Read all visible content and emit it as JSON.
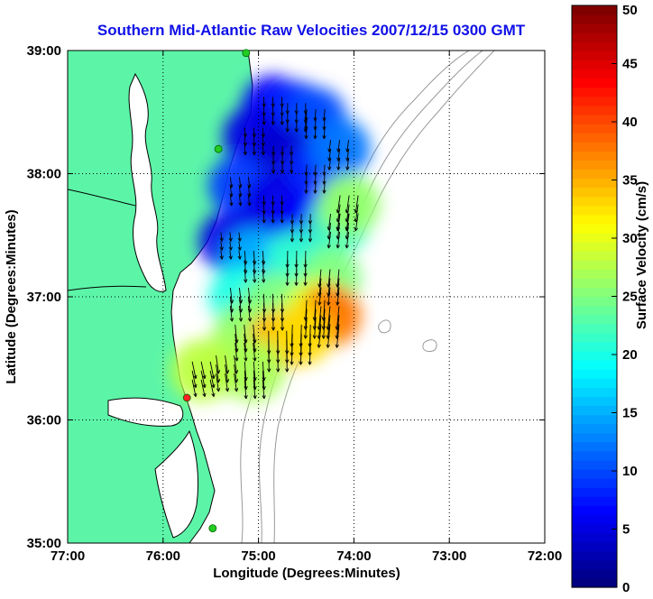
{
  "chart_data": {
    "type": "heatmap",
    "title": "Southern Mid-Atlantic Raw Velocities 2007/12/15 0300 GMT",
    "xlabel": "Longitude (Degrees:Minutes)",
    "ylabel": "Latitude (Degrees:Minutes)",
    "x_ticks": [
      {
        "value": -77,
        "label": "77:00"
      },
      {
        "value": -76,
        "label": "76:00"
      },
      {
        "value": -75,
        "label": "75:00"
      },
      {
        "value": -74,
        "label": "74:00"
      },
      {
        "value": -73,
        "label": "73:00"
      },
      {
        "value": -72,
        "label": "72:00"
      }
    ],
    "y_ticks": [
      {
        "value": 35,
        "label": "35:00"
      },
      {
        "value": 36,
        "label": "36:00"
      },
      {
        "value": 37,
        "label": "37:00"
      },
      {
        "value": 38,
        "label": "38:00"
      },
      {
        "value": 39,
        "label": "39:00"
      }
    ],
    "xlim": [
      -77,
      -72
    ],
    "ylim": [
      35,
      39
    ],
    "grid": true,
    "colorbar": {
      "label": "Surface Velocity (cm/s)",
      "range": [
        0,
        50
      ],
      "ticks": [
        {
          "value": 0,
          "label": "0"
        },
        {
          "value": 5,
          "label": "5"
        },
        {
          "value": 10,
          "label": "10"
        },
        {
          "value": 15,
          "label": "15"
        },
        {
          "value": 20,
          "label": "20"
        },
        {
          "value": 25,
          "label": "25"
        },
        {
          "value": 30,
          "label": "30"
        },
        {
          "value": 35,
          "label": "35"
        },
        {
          "value": 40,
          "label": "40"
        },
        {
          "value": 45,
          "label": "45"
        },
        {
          "value": 50,
          "label": "50"
        }
      ]
    },
    "velocity_field_samples": [
      {
        "lon": -74.85,
        "lat": 38.55,
        "speed": 6
      },
      {
        "lon": -74.6,
        "lat": 38.5,
        "speed": 8
      },
      {
        "lon": -74.4,
        "lat": 38.45,
        "speed": 10
      },
      {
        "lon": -75.05,
        "lat": 38.3,
        "speed": 5
      },
      {
        "lon": -74.75,
        "lat": 38.15,
        "speed": 4
      },
      {
        "lon": -74.4,
        "lat": 38.0,
        "speed": 8
      },
      {
        "lon": -74.15,
        "lat": 38.2,
        "speed": 12
      },
      {
        "lon": -75.2,
        "lat": 37.9,
        "speed": 9
      },
      {
        "lon": -74.85,
        "lat": 37.75,
        "speed": 5
      },
      {
        "lon": -74.55,
        "lat": 37.6,
        "speed": 6
      },
      {
        "lon": -74.15,
        "lat": 37.6,
        "speed": 22
      },
      {
        "lon": -74.05,
        "lat": 37.75,
        "speed": 26
      },
      {
        "lon": -75.3,
        "lat": 37.45,
        "speed": 5
      },
      {
        "lon": -75.05,
        "lat": 37.3,
        "speed": 15
      },
      {
        "lon": -74.6,
        "lat": 37.3,
        "speed": 21
      },
      {
        "lon": -74.25,
        "lat": 37.15,
        "speed": 25
      },
      {
        "lon": -75.2,
        "lat": 37.0,
        "speed": 20
      },
      {
        "lon": -74.85,
        "lat": 36.95,
        "speed": 25
      },
      {
        "lon": -74.4,
        "lat": 36.9,
        "speed": 30
      },
      {
        "lon": -74.25,
        "lat": 36.85,
        "speed": 38
      },
      {
        "lon": -75.15,
        "lat": 36.7,
        "speed": 26
      },
      {
        "lon": -74.8,
        "lat": 36.65,
        "speed": 35
      },
      {
        "lon": -74.55,
        "lat": 36.7,
        "speed": 33
      },
      {
        "lon": -75.35,
        "lat": 36.45,
        "speed": 27
      },
      {
        "lon": -75.05,
        "lat": 36.4,
        "speed": 27
      },
      {
        "lon": -75.6,
        "lat": 36.4,
        "speed": 28
      }
    ],
    "stations": [
      {
        "lon": -75.13,
        "lat": 38.98,
        "color": "#22cc22"
      },
      {
        "lon": -75.42,
        "lat": 38.2,
        "color": "#22cc22"
      },
      {
        "lon": -75.75,
        "lat": 36.18,
        "color": "#ff2222"
      },
      {
        "lon": -75.48,
        "lat": 35.12,
        "color": "#22cc22"
      }
    ],
    "land_color": "#5cf5a8"
  }
}
